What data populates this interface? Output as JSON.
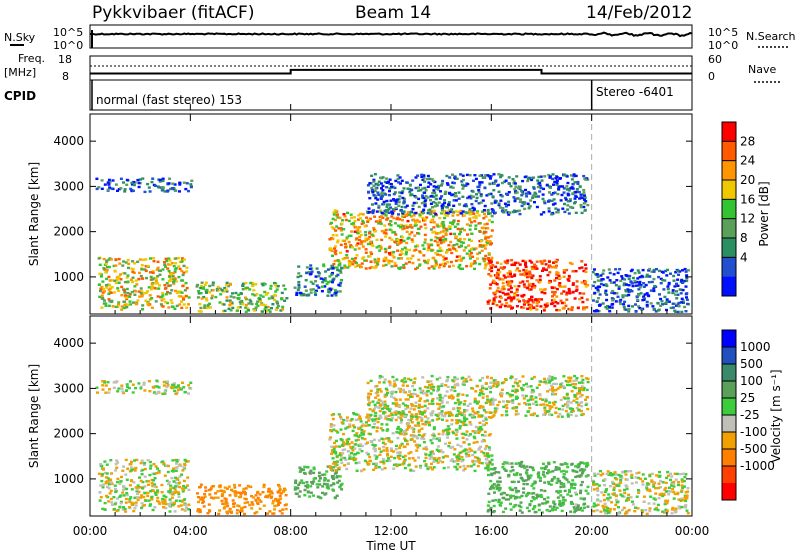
{
  "header": {
    "station": "Pykkvibaer (fitACF)",
    "beam": "Beam 14",
    "date": "14/Feb/2012"
  },
  "top_panels": {
    "nsky_label": "N.Sky",
    "nsearch_label": "N.Search",
    "nsky_ticks": [
      "10^5",
      "10^0"
    ],
    "nsearch_ticks": [
      "10^5",
      "10^0"
    ],
    "freq_label": "Freq.",
    "freq_unit": "[MHz]",
    "freq_ticks": [
      "18",
      "8"
    ],
    "nave_label": "Nave",
    "nave_ticks": [
      "60",
      "0"
    ],
    "cpid_label": "CPID",
    "cpid_modes": [
      {
        "text": "normal (fast stereo) 153",
        "start_hour": 0,
        "end_hour": 20
      },
      {
        "text": "Stereo -6401",
        "start_hour": 20,
        "end_hour": 24
      }
    ]
  },
  "panels": {
    "power": {
      "ylabel": "Slant Range [km]",
      "yticks": [
        "4000",
        "3000",
        "2000",
        "1000"
      ],
      "colorbar_label": "Power [dB]",
      "colorbar_ticks": [
        "28",
        "24",
        "20",
        "16",
        "12",
        "8",
        "4"
      ],
      "colors": [
        "#0010ff",
        "#2050d0",
        "#2b8f64",
        "#5aa05a",
        "#33c433",
        "#f0c800",
        "#ff9600",
        "#ff5a00",
        "#ff0000"
      ]
    },
    "velocity": {
      "ylabel": "Slant Range [km]",
      "yticks": [
        "4000",
        "3000",
        "2000",
        "1000"
      ],
      "colorbar_label": "Velocity [m s⁻¹]",
      "colorbar_ticks": [
        "1000",
        "500",
        "100",
        "25",
        "-25",
        "-100",
        "-500",
        "-1000"
      ],
      "colors": [
        "#0000ff",
        "#2050c0",
        "#3a8a6a",
        "#5aa05a",
        "#3ccc3c",
        "#c0c0b8",
        "#f0a000",
        "#ff8000",
        "#ff4000",
        "#ff0000"
      ]
    }
  },
  "x_axis": {
    "ticks": [
      "00:00",
      "04:00",
      "08:00",
      "12:00",
      "16:00",
      "20:00",
      "00:00"
    ],
    "label": "Time UT"
  },
  "chart_data": {
    "type": "heatmap",
    "x_range_hours": [
      0,
      24
    ],
    "y_range_km": [
      180,
      4600
    ],
    "x_tick_hours": [
      0,
      4,
      8,
      12,
      16,
      20,
      24
    ],
    "y_tick_km": [
      1000,
      2000,
      3000,
      4000
    ],
    "mode_change_hour": 20,
    "power_db_range": [
      0,
      30
    ],
    "velocity_range": [
      -1000,
      1000
    ],
    "frequency_mhz": [
      {
        "start_hour": 0,
        "end_hour": 8,
        "value": 10.5
      },
      {
        "start_hour": 8,
        "end_hour": 18,
        "value": 12.5
      },
      {
        "start_hour": 18,
        "end_hour": 24,
        "value": 10.5
      }
    ],
    "scatter_regions": [
      {
        "start_hour": 0.3,
        "end_hour": 3.9,
        "range_min_km": 300,
        "range_max_km": 1450,
        "power_db": 18,
        "velocity": 0
      },
      {
        "start_hour": 0.2,
        "end_hour": 4.0,
        "range_min_km": 2900,
        "range_max_km": 3200,
        "power_db": 6,
        "velocity": 0
      },
      {
        "start_hour": 4.2,
        "end_hour": 7.8,
        "range_min_km": 250,
        "range_max_km": 900,
        "power_db": 14,
        "velocity": -300
      },
      {
        "start_hour": 8.1,
        "end_hour": 10.0,
        "range_min_km": 600,
        "range_max_km": 1300,
        "power_db": 8,
        "velocity": 150
      },
      {
        "start_hour": 9.5,
        "end_hour": 16.0,
        "range_min_km": 1200,
        "range_max_km": 2500,
        "power_db": 20,
        "velocity": 0
      },
      {
        "start_hour": 11.0,
        "end_hour": 19.8,
        "range_min_km": 2400,
        "range_max_km": 3300,
        "power_db": 6,
        "velocity": 0
      },
      {
        "start_hour": 15.8,
        "end_hour": 19.8,
        "range_min_km": 280,
        "range_max_km": 1400,
        "power_db": 26,
        "velocity": 120
      },
      {
        "start_hour": 20.0,
        "end_hour": 23.8,
        "range_min_km": 250,
        "range_max_km": 1200,
        "power_db": 5,
        "velocity": 0
      }
    ]
  }
}
